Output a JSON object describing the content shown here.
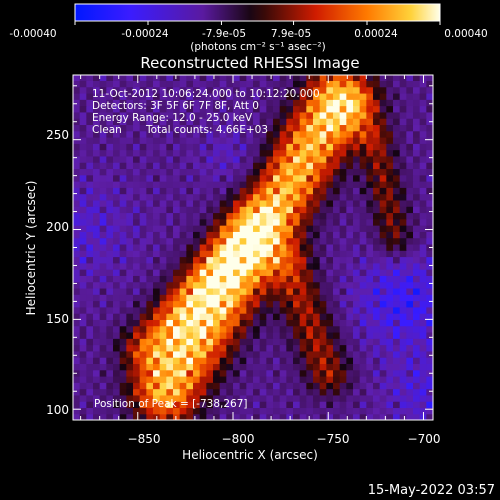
{
  "colors": {
    "background": "#000000",
    "text": "#ffffff",
    "axis": "#ffffff"
  },
  "colorbar": {
    "tick_labels": [
      "-0.00040",
      "-0.00024",
      "-7.9e-05",
      "7.9e-05",
      "0.00024",
      "0.00040"
    ],
    "unit_label": "(photons cm⁻² s⁻¹ asec⁻²)",
    "range": [
      -0.0004,
      0.0004
    ],
    "colormap": "blue-purple-red-yellow-white (RHESSI/IDL)"
  },
  "overlay": {
    "line1": "11-Oct-2012 10:06:24.000 to 10:12:20.000",
    "line2": "Detectors: 3F 5F 6F 7F 8F, Att 0",
    "line3": "Energy Range: 12.0 - 25.0 keV",
    "line4_method": "Clean",
    "line4_counts": "Total counts: 4.66E+03",
    "peak": "Position of Peak = [-738,267]"
  },
  "footer": {
    "timestamp": "15-May-2022 03:57"
  },
  "chart_data": {
    "type": "heatmap",
    "title": "Reconstructed RHESSI Image",
    "xlabel": "Heliocentric X (arcsec)",
    "ylabel": "Heliocentric Y (arcsec)",
    "xlim": [
      -884,
      -695
    ],
    "ylim": [
      94,
      286
    ],
    "x_ticks": [
      -850,
      -800,
      -750,
      -700
    ],
    "y_ticks": [
      100,
      150,
      200,
      250
    ],
    "x_tick_labels": [
      "−850",
      "−800",
      "−750",
      "−700"
    ],
    "y_tick_labels": [
      "100",
      "150",
      "200",
      "250"
    ],
    "peak_position": [
      -738,
      267
    ],
    "value_range": [
      -0.0004,
      0.0004
    ],
    "description_of_field": "Diagonal band of strong positive emission running from lower-left (~-830,110) to upper-right (~-740,270), with secondary streaks near x=-780..-760 and x=-720; weak/negative (purple-blue) emission elsewhere, most negative near (-710,160) and the left edge."
  }
}
